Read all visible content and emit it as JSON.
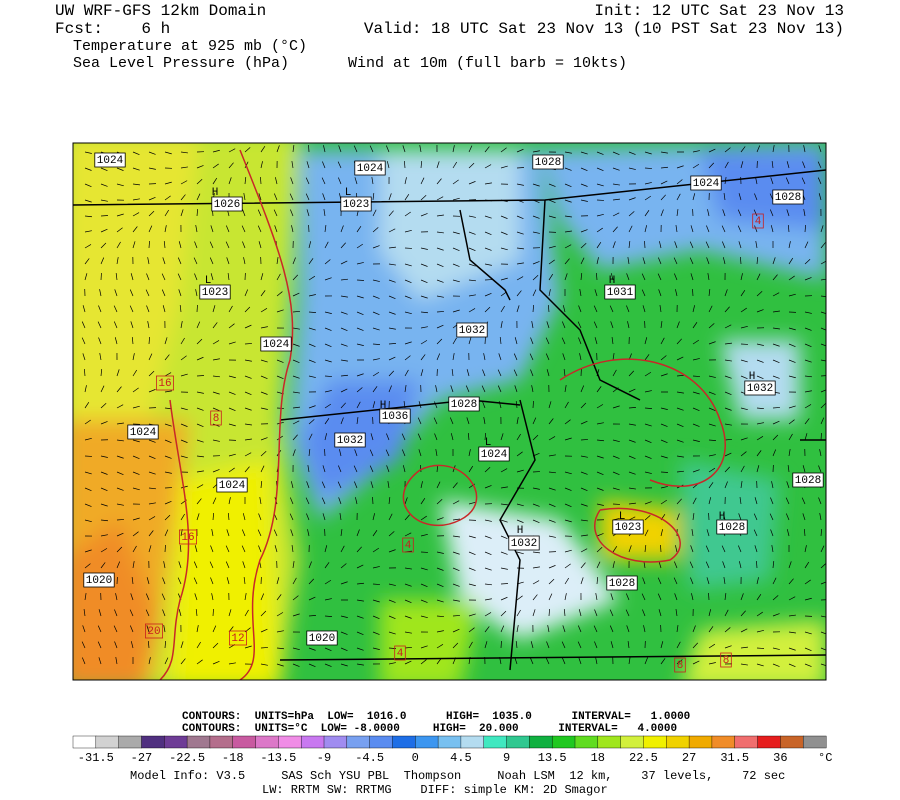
{
  "header": {
    "title": "UW WRF-GFS 12km Domain",
    "forecast": "Fcst:    6 h",
    "fields": [
      "Temperature at 925 mb (°C)",
      "Sea Level Pressure (hPa)"
    ],
    "init": "Init: 12 UTC Sat 23 Nov 13",
    "valid": "Valid: 18 UTC Sat 23 Nov 13 (10 PST Sat 23 Nov 13)",
    "wind": "Wind at 10m (full barb = 10kts)"
  },
  "map": {
    "labels": [
      "1024",
      "1024",
      "1028",
      "H",
      "1026",
      "L",
      "1023",
      "1024",
      "1028",
      "4",
      "L",
      "1023",
      "H",
      "1031",
      "1032",
      "1024",
      "16",
      "H",
      "1032",
      "H",
      "1036",
      "1028",
      "8",
      "1024",
      "1032",
      "L",
      "1024",
      "1024",
      "1028",
      "L",
      "1023",
      "H",
      "1028",
      "H",
      "1032",
      "16",
      "4",
      "1028",
      "1020",
      "20",
      "12",
      "1020",
      "4",
      "8",
      "8"
    ]
  },
  "footer": {
    "contours": [
      "CONTOURS:  UNITS=hPa  LOW=  1016.0      HIGH=  1035.0      INTERVAL=   1.0000",
      "CONTOURS:  UNITS=°C  LOW= -8.0000     HIGH=  20.000      INTERVAL=   4.0000"
    ],
    "colorbar": {
      "colors": [
        "#ffffff",
        "#d2d2d2",
        "#aaaaaa",
        "#503080",
        "#6e3c96",
        "#a07890",
        "#b46e8c",
        "#c85aa0",
        "#dc78c8",
        "#f08ce6",
        "#c878f0",
        "#a08cf0",
        "#78a0f0",
        "#5a8cf0",
        "#1e6ee6",
        "#3c96f0",
        "#78c0f0",
        "#b4dcf0",
        "#40e8c0",
        "#30c890",
        "#10b040",
        "#20c820",
        "#60dc20",
        "#a0e61e",
        "#d2f03c",
        "#f0f000",
        "#f0d200",
        "#f0aa00",
        "#f08c28",
        "#f06e6e",
        "#e61e1e",
        "#c86428",
        "#909090"
      ],
      "labels": [
        "-31.5",
        "-27",
        "-22.5",
        "-18",
        "-13.5",
        "-9",
        "-4.5",
        "0",
        "4.5",
        "9",
        "13.5",
        "18",
        "22.5",
        "27",
        "31.5",
        "36"
      ],
      "unit": "°C"
    },
    "model_info": [
      "Model Info: V3.5     SAS Sch YSU PBL  Thompson     Noah LSM  12 km,    37 levels,    72 sec",
      "LW: RRTM SW: RRTMG    DIFF: simple KM: 2D Smagor"
    ]
  }
}
